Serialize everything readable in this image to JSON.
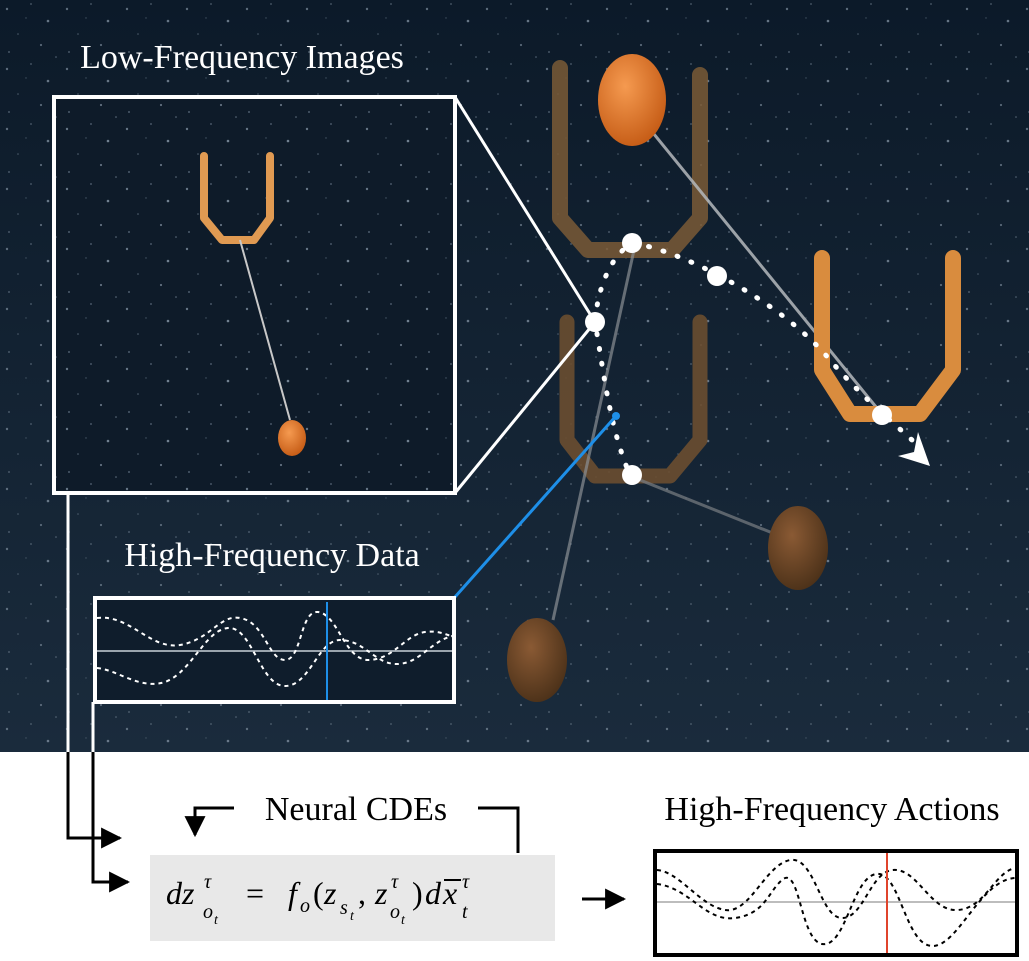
{
  "labels": {
    "low_freq": "Low-Frequency Images",
    "high_freq_data": "High-Frequency Data",
    "neural_cdes": "Neural CDEs",
    "high_freq_actions": "High-Frequency Actions"
  },
  "equation": "dz^τ_{o_t} = f_o(z_{s_t}, z^τ_{o_t}) d̅x^τ_t",
  "colors": {
    "background_top": "#0f1d2c",
    "cursor_blue": "#1e8fe8",
    "cursor_red": "#e0442c",
    "equation_bg": "#e8e8e8",
    "gripper": "#d98c3e",
    "ball": "#e07a2e"
  },
  "icons": [
    "gripper-icon",
    "ball-icon",
    "trajectory-arrowhead-icon"
  ]
}
